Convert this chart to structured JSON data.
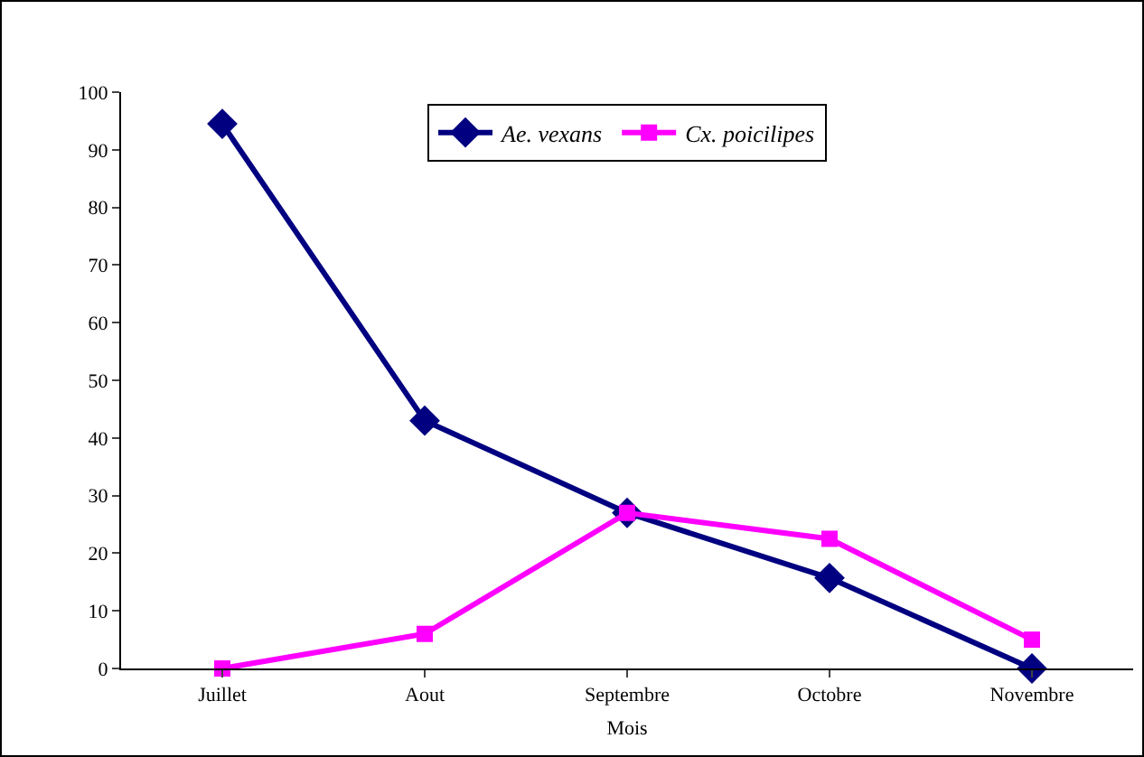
{
  "chart_data": {
    "type": "line",
    "xlabel": "Mois",
    "categories": [
      "Juillet",
      "Aout",
      "Septembre",
      "Octobre",
      "Novembre"
    ],
    "series": [
      {
        "name": "Ae. vexans",
        "color": "#000080",
        "marker": "diamond",
        "values": [
          94.5,
          43,
          27,
          15.7,
          0
        ]
      },
      {
        "name": "Cx. poicilipes",
        "color": "#ff00ff",
        "marker": "square",
        "values": [
          0,
          6,
          27,
          22.5,
          5
        ]
      }
    ],
    "ylim": [
      0,
      100
    ],
    "yticks": [
      0,
      10,
      20,
      30,
      40,
      50,
      60,
      70,
      80,
      90,
      100
    ],
    "grid": false,
    "legend": "top",
    "line_style": "solid"
  }
}
